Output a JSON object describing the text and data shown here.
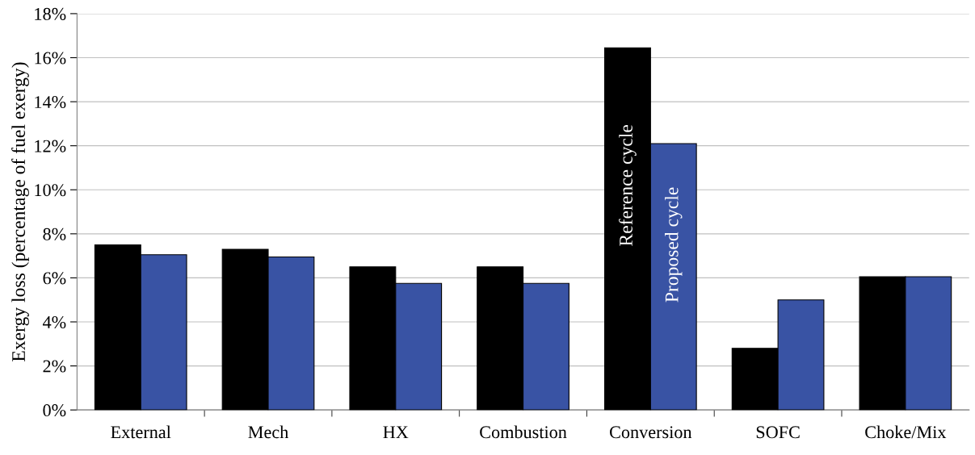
{
  "chart_data": {
    "type": "bar",
    "ylabel": "Exergy loss (percentage of fuel exergy)",
    "categories": [
      "External",
      "Mech",
      "HX",
      "Combustion",
      "Conversion",
      "SOFC",
      "Choke/Mix"
    ],
    "series": [
      {
        "name": "Reference cycle",
        "color": "#000000",
        "values": [
          7.5,
          7.3,
          6.5,
          6.5,
          16.45,
          2.8,
          6.05
        ]
      },
      {
        "name": "Proposed cycle",
        "color": "#3953a4",
        "values": [
          7.05,
          6.95,
          5.75,
          5.75,
          12.1,
          5.0,
          6.05
        ]
      }
    ],
    "ylim": [
      0,
      18
    ],
    "yticks": [
      {
        "value": 0,
        "label": "0%"
      },
      {
        "value": 2,
        "label": "2%"
      },
      {
        "value": 4,
        "label": "4%"
      },
      {
        "value": 6,
        "label": "6%"
      },
      {
        "value": 8,
        "label": "8%"
      },
      {
        "value": 10,
        "label": "10%"
      },
      {
        "value": 12,
        "label": "12%"
      },
      {
        "value": 14,
        "label": "14%"
      },
      {
        "value": 16,
        "label": "16%"
      },
      {
        "value": 18,
        "label": "18%"
      }
    ],
    "grid": "y"
  }
}
